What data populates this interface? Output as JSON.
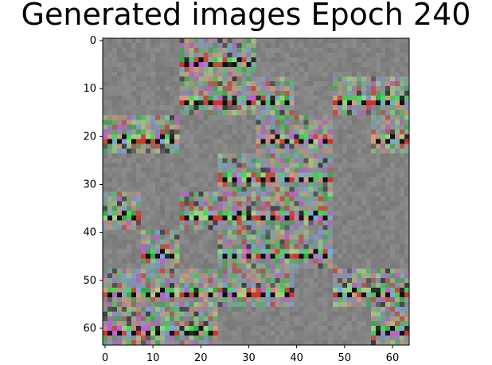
{
  "chart_data": {
    "type": "heatmap",
    "title": "Generated images Epoch 240",
    "xlabel": "",
    "ylabel": "",
    "xlim": [
      -0.5,
      63.5
    ],
    "ylim": [
      63.5,
      -0.5
    ],
    "x_ticks": [
      0,
      10,
      20,
      30,
      40,
      50,
      60
    ],
    "y_ticks": [
      0,
      10,
      20,
      30,
      40,
      50,
      60
    ],
    "grid": false,
    "legend": "none",
    "image": {
      "width": 64,
      "height": 64,
      "tile_size": 8,
      "tile_grid_rows": 8,
      "tile_grid_cols": 8,
      "tile_pattern_present": [
        [
          0,
          0,
          1,
          1,
          0,
          0,
          0,
          0
        ],
        [
          0,
          0,
          1,
          1,
          1,
          0,
          1,
          1
        ],
        [
          1,
          1,
          0,
          0,
          1,
          1,
          0,
          1
        ],
        [
          0,
          0,
          0,
          1,
          1,
          1,
          0,
          0
        ],
        [
          1,
          0,
          1,
          1,
          1,
          1,
          0,
          0
        ],
        [
          0,
          1,
          0,
          1,
          1,
          1,
          0,
          0
        ],
        [
          1,
          1,
          1,
          1,
          1,
          0,
          1,
          1
        ],
        [
          1,
          1,
          1,
          0,
          0,
          0,
          0,
          1
        ]
      ],
      "background_color": "#828282",
      "palette": [
        "#d43c2c",
        "#42d454",
        "#9be28c",
        "#d48c8c",
        "#7ab8ac",
        "#e0a27a",
        "#9a8ad4",
        "#1f1f1f",
        "#b8d28a",
        "#7ea9e8",
        "#c85adc",
        "#2fae48"
      ]
    }
  }
}
